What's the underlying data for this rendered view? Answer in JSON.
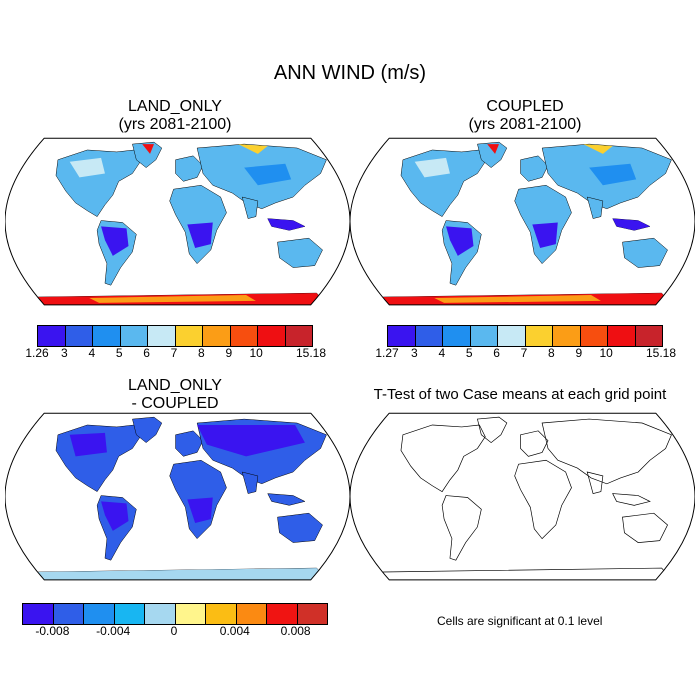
{
  "title": "ANN WIND (m/s)",
  "panels": {
    "top_left": {
      "title_line1": "LAND_ONLY",
      "title_line2": "(yrs 2081-2100)"
    },
    "top_right": {
      "title_line1": "COUPLED",
      "title_line2": "(yrs 2081-2100)"
    },
    "bottom_left": {
      "title_line1": "LAND_ONLY",
      "title_line2": "- COUPLED"
    },
    "bottom_right": {
      "title": "T-Test of two Case means at each grid point",
      "note": "Cells are significant at 0.1 level"
    }
  },
  "colorbars": {
    "abs_colors": [
      "#3a14f0",
      "#2f5ee8",
      "#1f8ff0",
      "#5ab8ef",
      "#c7e9f5",
      "#fbd02f",
      "#fb9d16",
      "#f74e0f",
      "#ef0f12",
      "#c8232b"
    ],
    "left_labels": [
      "1.26",
      "3",
      "4",
      "5",
      "6",
      "7",
      "8",
      "9",
      "10",
      "15.18"
    ],
    "right_labels": [
      "1.27",
      "3",
      "4",
      "5",
      "6",
      "7",
      "8",
      "9",
      "10",
      "15.18"
    ],
    "diff_colors": [
      "#3a14f0",
      "#2f5ee8",
      "#1f8ff0",
      "#18b6f2",
      "#a6d8f0",
      "#fff58c",
      "#fbbd14",
      "#fb8a12",
      "#f01412",
      "#d03028"
    ],
    "diff_labels": [
      "-0.008",
      "-0.004",
      "0",
      "0.004",
      "0.008"
    ]
  },
  "icons": {
    "map": "world-map-robinson-icon"
  }
}
